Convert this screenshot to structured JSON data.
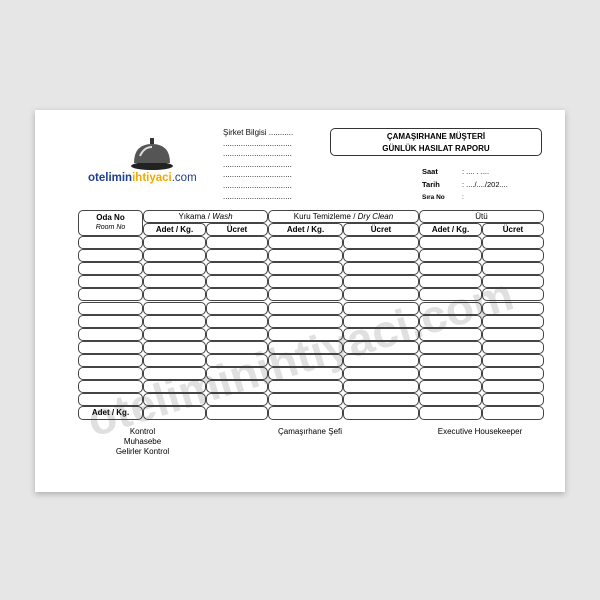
{
  "logo": {
    "part1": "otelimin",
    "part2": "ihtiyaci",
    "part3": ".com",
    "icon": "service-bell-icon"
  },
  "company": {
    "label": "Şirket Bilgisi ...........",
    "lines": [
      "...............................",
      "...............................",
      "...............................",
      "...............................",
      "...............................",
      "..............................."
    ]
  },
  "title": {
    "line1": "ÇAMAŞIRHANE MÜŞTERİ",
    "line2": "GÜNLÜK HASILAT RAPORU"
  },
  "meta": [
    {
      "label": "Saat",
      "value": ": .... . ...."
    },
    {
      "label": "Tarih",
      "value": ": ..../..../202...."
    },
    {
      "label": "Sıra No",
      "value": ":"
    }
  ],
  "table": {
    "room_header": "Oda No",
    "room_header_en": "Room No",
    "groups": [
      {
        "tr": "Yıkama / ",
        "en": "Wash"
      },
      {
        "tr": "Kuru Temizleme / ",
        "en": "Dry Clean"
      },
      {
        "tr": "Ütü",
        "en": ""
      }
    ],
    "sub": [
      "Adet / Kg.",
      "Ücret",
      "Adet / Kg.",
      "Ücret",
      "Adet / Kg.",
      "Ücret"
    ],
    "total_label": "Adet / Kg."
  },
  "footer": {
    "left": [
      "Kontrol",
      "Muhasebe",
      "Gelirler Kontrol"
    ],
    "middle": "Çamaşırhane Şefi",
    "right": "Executive Housekeeper"
  },
  "watermark": "oteliminihtiyaci.com"
}
